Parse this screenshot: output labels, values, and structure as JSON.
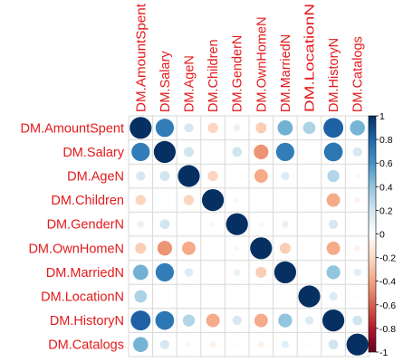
{
  "chart_data": {
    "type": "heatmap",
    "title": "",
    "variables": [
      "DM.AmountSpent",
      "DM.Salary",
      "DM.AgeN",
      "DM.Children",
      "DM.GenderN",
      "DM.OwnHomeN",
      "DM.MarriedN",
      "DM.LocationN",
      "DM.HistoryN",
      "DM.Catalogs"
    ],
    "matrix": [
      [
        1.0,
        0.7,
        0.18,
        -0.22,
        0.1,
        -0.25,
        0.48,
        0.32,
        0.82,
        0.47
      ],
      [
        0.7,
        1.0,
        0.2,
        -0.02,
        0.2,
        -0.45,
        0.7,
        0.0,
        0.73,
        0.18
      ],
      [
        0.18,
        0.2,
        1.0,
        -0.22,
        0.0,
        -0.38,
        0.15,
        0.0,
        0.3,
        0.05
      ],
      [
        -0.22,
        -0.02,
        -0.22,
        1.0,
        -0.05,
        -0.03,
        -0.02,
        0.0,
        -0.38,
        -0.08
      ],
      [
        0.1,
        0.2,
        0.0,
        -0.05,
        1.0,
        -0.05,
        0.1,
        0.0,
        0.18,
        0.03
      ],
      [
        -0.25,
        -0.45,
        -0.38,
        -0.03,
        -0.05,
        1.0,
        -0.25,
        0.0,
        -0.38,
        -0.08
      ],
      [
        0.48,
        0.7,
        0.15,
        -0.02,
        0.1,
        -0.25,
        1.0,
        0.0,
        0.4,
        0.12
      ],
      [
        0.32,
        0.0,
        0.0,
        0.0,
        0.0,
        0.0,
        0.0,
        1.0,
        0.15,
        0.03
      ],
      [
        0.82,
        0.73,
        0.3,
        -0.38,
        0.18,
        -0.38,
        0.4,
        0.15,
        1.0,
        0.2
      ],
      [
        0.47,
        0.18,
        0.05,
        -0.08,
        0.03,
        -0.08,
        0.12,
        0.03,
        0.2,
        1.0
      ]
    ],
    "color_range": [
      -1,
      1
    ],
    "colorbar_ticks": [
      "1",
      "0.8",
      "0.6",
      "0.4",
      "0.2",
      "0",
      "-0.2",
      "-0.4",
      "-0.6",
      "-0.8",
      "-1"
    ],
    "colors": {
      "negative": "#67001F",
      "positive": "#053061",
      "zero": "#FFFFFF",
      "label": "#E31A1C",
      "grid": "#D8D8D8"
    },
    "grid": true,
    "legend": "right"
  }
}
